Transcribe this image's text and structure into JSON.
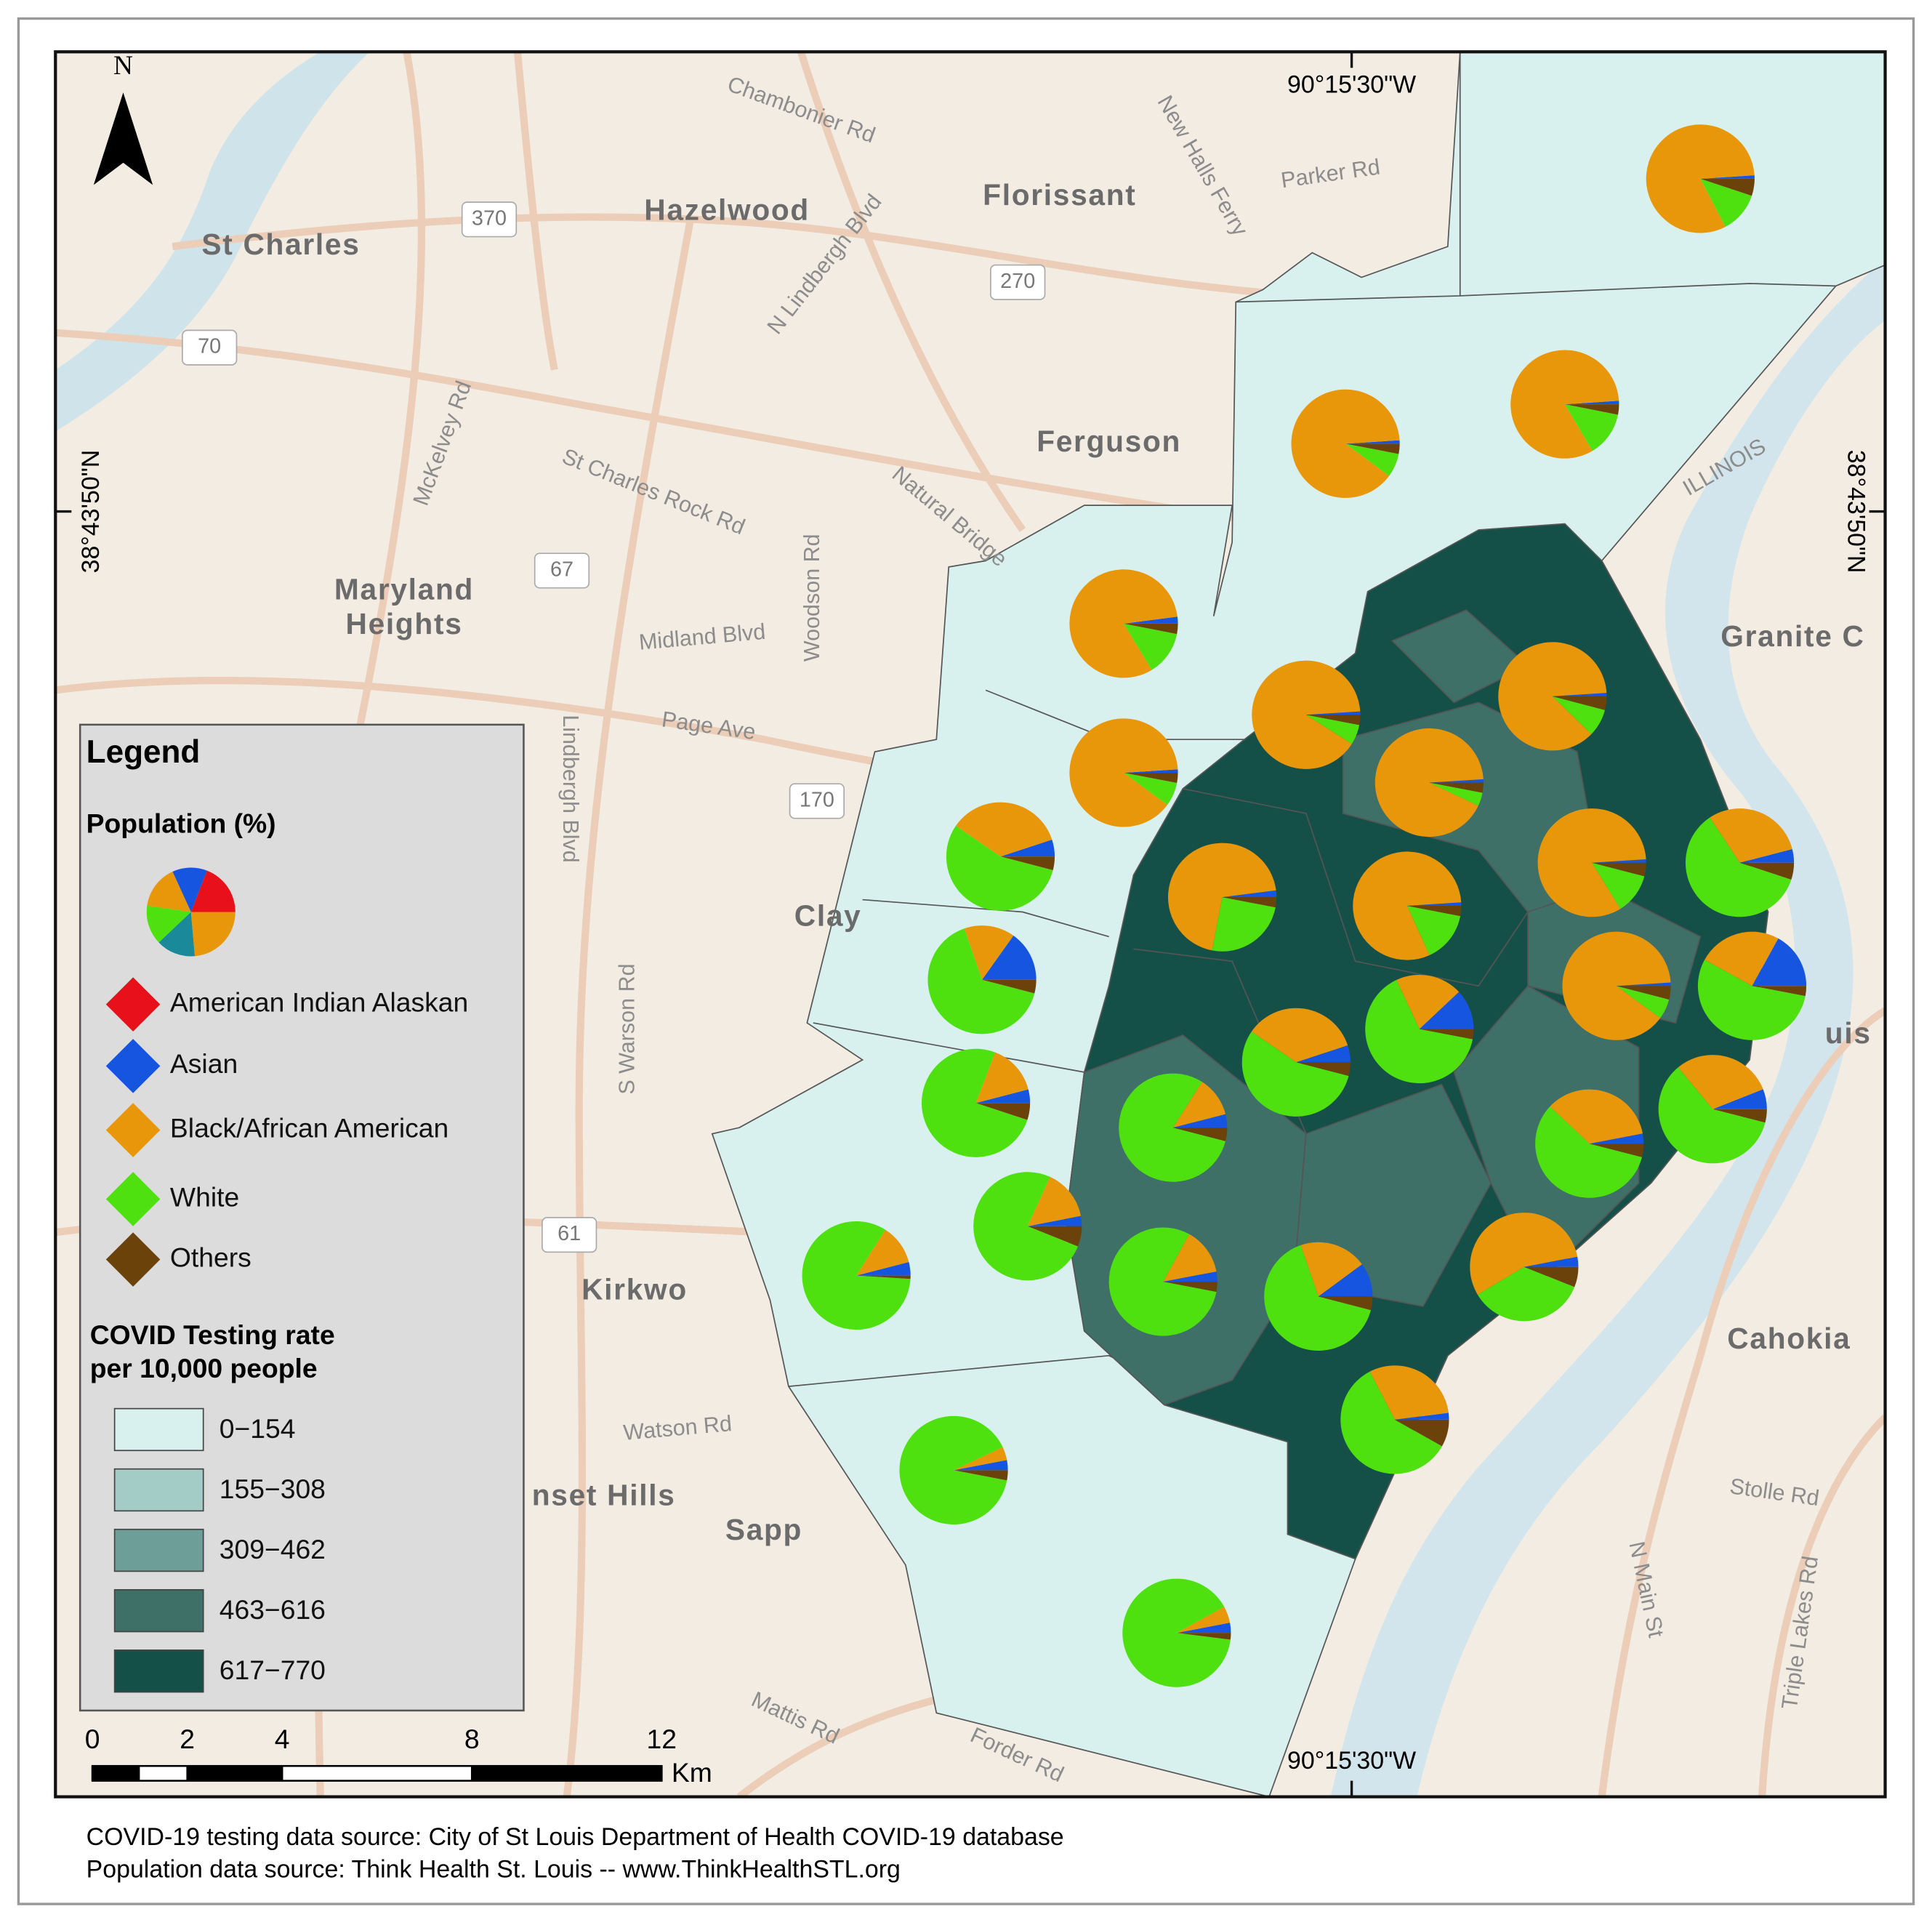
{
  "map": {
    "north": "N",
    "coords": {
      "top": "90°15'30\"W",
      "bottom": "90°15'30\"W",
      "left": "38°43'50\"N",
      "right": "38°43'50\"N"
    },
    "places": [
      "Hazelwood",
      "Florissant",
      "St Charles",
      "Ferguson",
      "Maryland",
      "Heights",
      "Granite C",
      "Kirkwo",
      "Clay",
      "nset Hills",
      "Sapp",
      "Cahokia",
      "uis"
    ],
    "roads": [
      "Chambonier Rd",
      "N Lindbergh Blvd",
      "New Halls Ferry",
      "Parker Rd",
      "McKelvey Rd",
      "St Charles Rock Rd",
      "Midland Blvd",
      "Page Ave",
      "Woodson Rd",
      "Lindbergh Blvd",
      "S Warson Rd",
      "Watson Rd",
      "N Main St",
      "Stolle Rd",
      "Triple Lakes Rd",
      "Mattis Rd",
      "Forder Rd",
      "ILLINOIS",
      "Natural Bridge"
    ],
    "shields": [
      "370",
      "270",
      "70",
      "67",
      "170",
      "61"
    ]
  },
  "legend": {
    "title": "Legend",
    "population_title": "Population (%)",
    "groups": [
      "American Indian Alaskan",
      "Asian",
      "Black/African American",
      "White",
      "Others"
    ],
    "group_colors": [
      "#e8101a",
      "#1555e0",
      "#e8960a",
      "#4fe010",
      "#6b420a"
    ],
    "rate_title": [
      "COVID Testing rate",
      "per 10,000 people"
    ],
    "classes": [
      "0−154",
      "155−308",
      "309−462",
      "463−616",
      "617−770"
    ],
    "class_colors": [
      "#d9f1ee",
      "#a3ccc7",
      "#6d9e98",
      "#3e7068",
      "#155048"
    ]
  },
  "scale": {
    "ticks": [
      0,
      2,
      4,
      8,
      12
    ],
    "unit": "Km"
  },
  "pies": [
    [
      0,
      1,
      80,
      12,
      5
    ],
    [
      0,
      1,
      80,
      13,
      3
    ],
    [
      0,
      1,
      88,
      7,
      3
    ],
    [
      0,
      2,
      80,
      13,
      3
    ],
    [
      0,
      1,
      90,
      6,
      3
    ],
    [
      0,
      1,
      85,
      8,
      4
    ],
    [
      0,
      1,
      88,
      7,
      3
    ],
    [
      0,
      1,
      92,
      4,
      3
    ],
    [
      0,
      5,
      35,
      55,
      4
    ],
    [
      0,
      2,
      70,
      25,
      3
    ],
    [
      0,
      1,
      80,
      15,
      3
    ],
    [
      0,
      1,
      82,
      12,
      4
    ],
    [
      0,
      4,
      30,
      60,
      5
    ],
    [
      0,
      15,
      15,
      65,
      4
    ],
    [
      0,
      1,
      88,
      6,
      4
    ],
    [
      0,
      17,
      25,
      55,
      3
    ],
    [
      0,
      12,
      20,
      65,
      3
    ],
    [
      0,
      5,
      35,
      55,
      4
    ],
    [
      0,
      4,
      15,
      75,
      5
    ],
    [
      0,
      4,
      12,
      80,
      4
    ],
    [
      0,
      6,
      30,
      60,
      4
    ],
    [
      0,
      3,
      35,
      58,
      4
    ],
    [
      0,
      3,
      15,
      75,
      6
    ],
    [
      0,
      4,
      12,
      83,
      1
    ],
    [
      0,
      3,
      14,
      80,
      3
    ],
    [
      0,
      10,
      20,
      65,
      4
    ],
    [
      0,
      3,
      55,
      35,
      6
    ],
    [
      0,
      2,
      30,
      58,
      8
    ],
    [
      0,
      3,
      4,
      90,
      3
    ],
    [
      0,
      3,
      5,
      90,
      2
    ]
  ],
  "sources": [
    "COVID-19 testing data source:  City of St Louis Department of Health COVID-19 database",
    "Population data source: Think Health St. Louis -- www.ThinkHealthSTL.org"
  ]
}
